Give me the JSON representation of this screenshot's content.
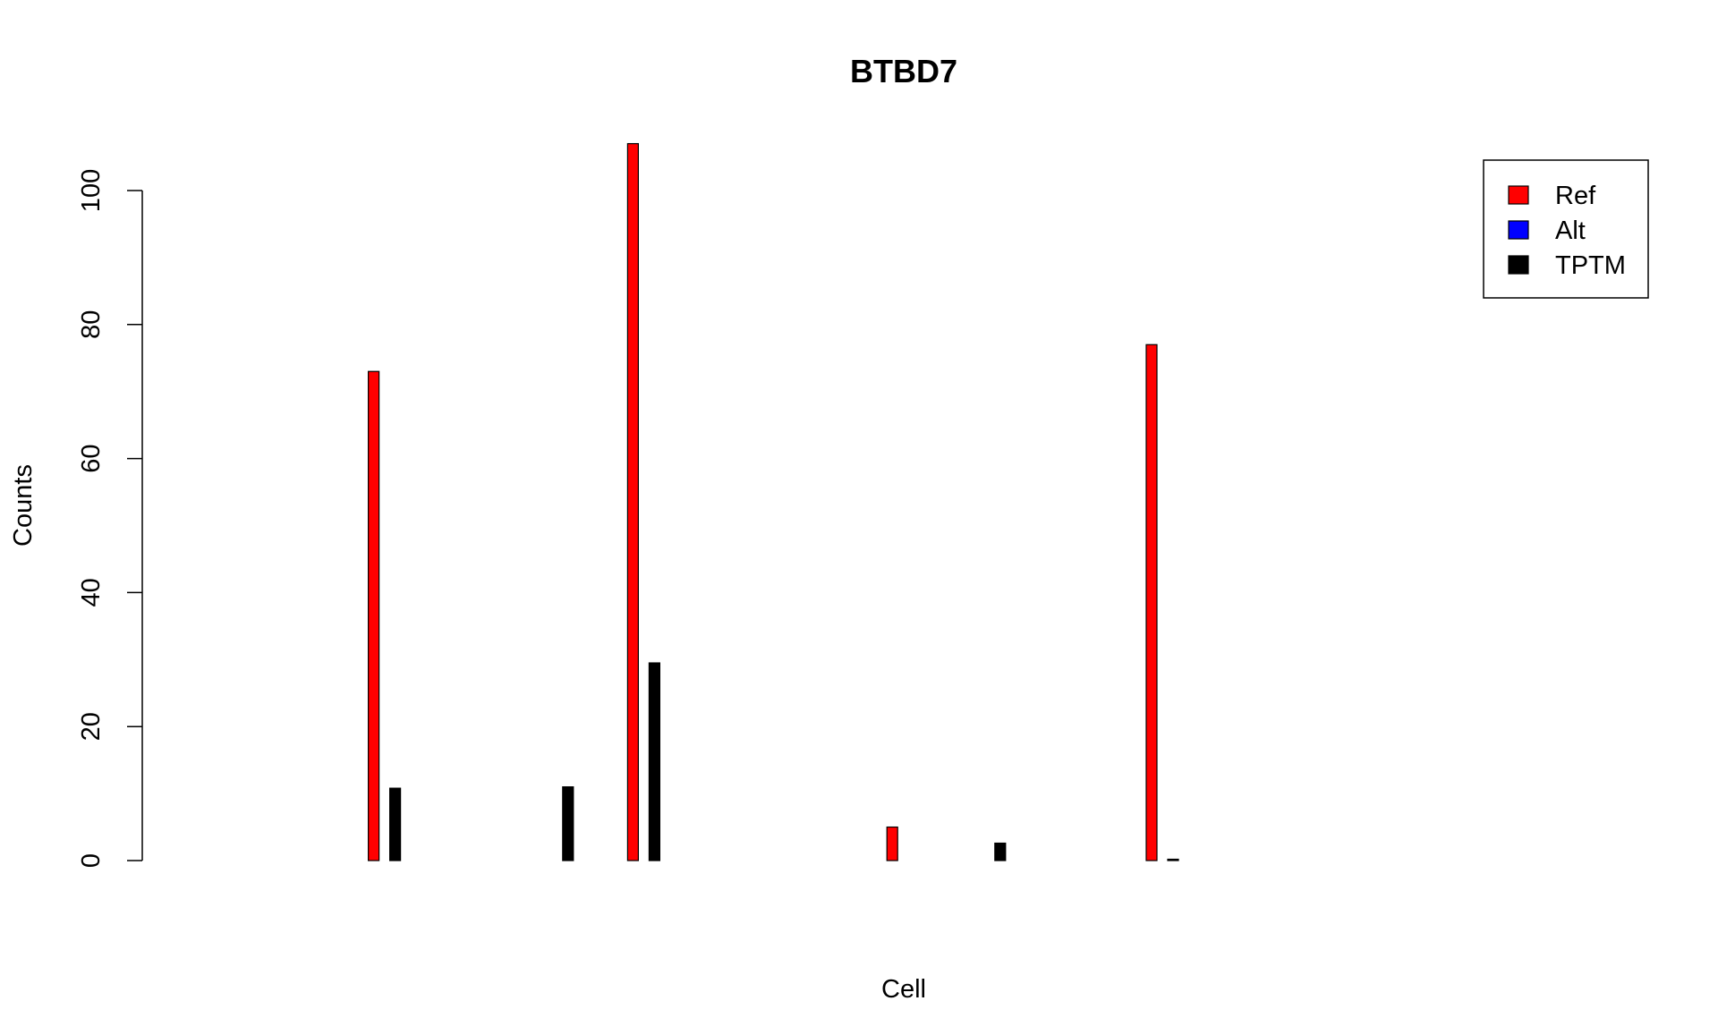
{
  "chart_data": {
    "type": "bar",
    "title": "BTBD7",
    "xlabel": "Cell",
    "ylabel": "Counts",
    "ylim": [
      0,
      107
    ],
    "yticks": [
      0,
      20,
      40,
      60,
      80,
      100
    ],
    "grid": false,
    "legend_position": "top-right",
    "categories": [
      "",
      "",
      "",
      "",
      "",
      "",
      "",
      "",
      "",
      "",
      "",
      "",
      "",
      "",
      "",
      "",
      ""
    ],
    "series": [
      {
        "name": "Ref",
        "color": "#ff0000",
        "values": [
          0,
          73,
          0,
          0,
          107,
          0,
          0,
          5,
          0,
          0,
          77,
          0,
          0,
          0,
          0,
          0,
          0
        ]
      },
      {
        "name": "Alt",
        "color": "#0000ff",
        "values": [
          0,
          0,
          0,
          0,
          0,
          0,
          0,
          0,
          0,
          0,
          0,
          0,
          0,
          0,
          0,
          0,
          0
        ]
      },
      {
        "name": "TPTM",
        "color": "#000000",
        "values": [
          0,
          10.8,
          0,
          11,
          29.5,
          0,
          0,
          0,
          2.6,
          0,
          0.2,
          0,
          0,
          0,
          0,
          0,
          0
        ]
      }
    ]
  }
}
